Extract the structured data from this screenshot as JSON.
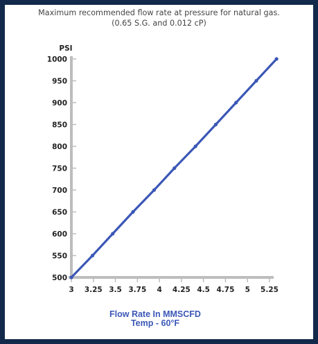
{
  "chart_data": {
    "type": "line",
    "title": "Maximum recommended flow rate at pressure for natural gas.",
    "subtitle": "(0.65 S.G. and 0.012 cP)",
    "ylabel": "PSI",
    "xlabel": "Flow Rate In MMSCFD",
    "xlabel_sub": "Temp - 60°F",
    "xlim": [
      3,
      5.25
    ],
    "ylim": [
      500,
      1000
    ],
    "x_ticks": [
      "3",
      "3.25",
      "3.5",
      "3.75",
      "4",
      "4.25",
      "4.5",
      "4.75",
      "5",
      "5.25"
    ],
    "y_ticks": [
      "500",
      "550",
      "600",
      "650",
      "700",
      "750",
      "800",
      "850",
      "900",
      "950",
      "1000"
    ],
    "grid": false,
    "series": [
      {
        "x": [
          3.0,
          3.24,
          3.47,
          3.7,
          3.94,
          4.17,
          4.41,
          4.64,
          4.87,
          5.1,
          5.33
        ],
        "y": [
          500,
          550,
          600,
          650,
          700,
          750,
          800,
          850,
          900,
          950,
          1000
        ],
        "color": "#3b57b6"
      }
    ]
  }
}
